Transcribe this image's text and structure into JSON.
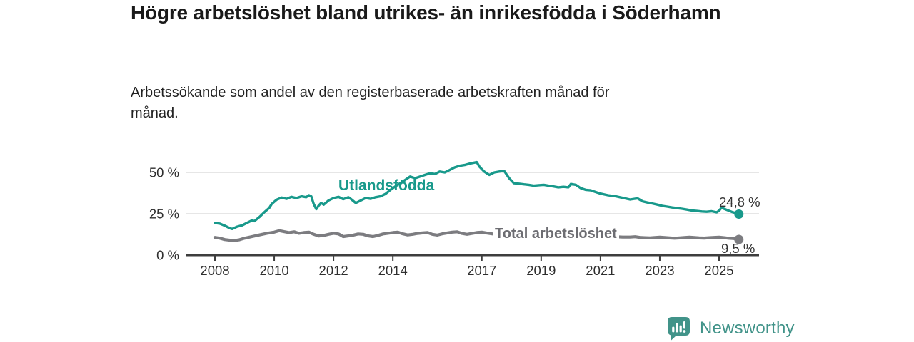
{
  "header": {
    "title": "Högre arbetslöshet bland utrikes- än inrikesfödda i Söderhamn",
    "subtitle": "Arbetssökande som andel av den registerbaserade arbetskraften månad för månad."
  },
  "colors": {
    "accent_teal": "#18998b",
    "line_gray": "#7c7c80",
    "label_gray": "#6d6d72",
    "axis": "#3d3d3d",
    "gridline": "#d8d8d8",
    "tick_text": "#2e2e2e",
    "title_text": "#1a1a1a",
    "value_label_text": "#333333",
    "logo_teal": "#419389"
  },
  "footer": {
    "brand": "Newsworthy",
    "logo_icon": "bar-chart-speech-bubble-icon"
  },
  "chart_data": {
    "type": "line",
    "title": "Högre arbetslöshet bland utrikes- än inrikesfödda i Söderhamn",
    "subtitle": "Arbetssökande som andel av den registerbaserade arbetskraften månad för månad.",
    "xlabel": "",
    "ylabel": "",
    "grid": "horizontal-only",
    "legend_position": "inline-labels-on-lines",
    "xlim": [
      2007.05,
      2026.35
    ],
    "ylim": [
      0,
      61
    ],
    "x_ticks": [
      {
        "value": 2008,
        "label": "2008"
      },
      {
        "value": 2010,
        "label": "2010"
      },
      {
        "value": 2012,
        "label": "2012"
      },
      {
        "value": 2014,
        "label": "2014"
      },
      {
        "value": 2017,
        "label": "2017"
      },
      {
        "value": 2019,
        "label": "2019"
      },
      {
        "value": 2021,
        "label": "2021"
      },
      {
        "value": 2023,
        "label": "2023"
      },
      {
        "value": 2025,
        "label": "2025"
      }
    ],
    "y_ticks": [
      {
        "value": 0,
        "label": "0 %"
      },
      {
        "value": 25,
        "label": "25 %"
      },
      {
        "value": 50,
        "label": "50 %"
      }
    ],
    "series": [
      {
        "name": "Utlandsfödda",
        "color": "#18998b",
        "end_label": "24,8 %",
        "end_value": 24.8,
        "points": [
          [
            2008.0,
            19.5
          ],
          [
            2008.17,
            19.0
          ],
          [
            2008.33,
            17.8
          ],
          [
            2008.5,
            16.3
          ],
          [
            2008.58,
            15.8
          ],
          [
            2008.75,
            17.2
          ],
          [
            2008.92,
            18.0
          ],
          [
            2009.08,
            19.5
          ],
          [
            2009.25,
            21.0
          ],
          [
            2009.33,
            20.5
          ],
          [
            2009.5,
            23.0
          ],
          [
            2009.67,
            26.0
          ],
          [
            2009.83,
            28.5
          ],
          [
            2009.92,
            31.0
          ],
          [
            2010.08,
            33.5
          ],
          [
            2010.25,
            34.8
          ],
          [
            2010.42,
            34.0
          ],
          [
            2010.58,
            35.2
          ],
          [
            2010.75,
            34.5
          ],
          [
            2010.92,
            35.5
          ],
          [
            2011.08,
            35.0
          ],
          [
            2011.17,
            36.2
          ],
          [
            2011.25,
            35.5
          ],
          [
            2011.33,
            31.0
          ],
          [
            2011.42,
            27.8
          ],
          [
            2011.5,
            30.0
          ],
          [
            2011.58,
            31.5
          ],
          [
            2011.67,
            30.5
          ],
          [
            2011.83,
            33.0
          ],
          [
            2012.0,
            34.5
          ],
          [
            2012.17,
            35.2
          ],
          [
            2012.33,
            33.8
          ],
          [
            2012.5,
            35.0
          ],
          [
            2012.58,
            34.0
          ],
          [
            2012.75,
            31.5
          ],
          [
            2012.92,
            33.0
          ],
          [
            2013.08,
            34.5
          ],
          [
            2013.25,
            34.0
          ],
          [
            2013.42,
            35.0
          ],
          [
            2013.58,
            35.5
          ],
          [
            2013.75,
            37.0
          ],
          [
            2013.92,
            39.5
          ],
          [
            2014.08,
            41.5
          ],
          [
            2014.25,
            43.5
          ],
          [
            2014.42,
            45.5
          ],
          [
            2014.58,
            47.5
          ],
          [
            2014.75,
            46.5
          ],
          [
            2014.92,
            47.5
          ],
          [
            2015.08,
            48.5
          ],
          [
            2015.25,
            49.5
          ],
          [
            2015.42,
            49.0
          ],
          [
            2015.58,
            50.5
          ],
          [
            2015.75,
            50.0
          ],
          [
            2015.92,
            51.5
          ],
          [
            2016.08,
            53.0
          ],
          [
            2016.25,
            54.0
          ],
          [
            2016.42,
            54.5
          ],
          [
            2016.58,
            55.3
          ],
          [
            2016.83,
            56.2
          ],
          [
            2016.92,
            53.5
          ],
          [
            2017.08,
            50.5
          ],
          [
            2017.25,
            48.5
          ],
          [
            2017.42,
            50.0
          ],
          [
            2017.58,
            50.5
          ],
          [
            2017.75,
            51.0
          ],
          [
            2017.92,
            46.5
          ],
          [
            2018.08,
            43.5
          ],
          [
            2018.25,
            43.2
          ],
          [
            2018.42,
            42.8
          ],
          [
            2018.58,
            42.5
          ],
          [
            2018.75,
            42.0
          ],
          [
            2018.92,
            42.3
          ],
          [
            2019.08,
            42.5
          ],
          [
            2019.25,
            42.0
          ],
          [
            2019.42,
            41.5
          ],
          [
            2019.58,
            41.0
          ],
          [
            2019.75,
            41.3
          ],
          [
            2019.92,
            41.0
          ],
          [
            2020.0,
            43.0
          ],
          [
            2020.17,
            42.5
          ],
          [
            2020.33,
            40.5
          ],
          [
            2020.5,
            39.5
          ],
          [
            2020.67,
            39.2
          ],
          [
            2020.83,
            38.2
          ],
          [
            2021.0,
            37.2
          ],
          [
            2021.25,
            36.2
          ],
          [
            2021.5,
            35.6
          ],
          [
            2021.75,
            34.6
          ],
          [
            2022.0,
            33.6
          ],
          [
            2022.25,
            34.3
          ],
          [
            2022.42,
            32.5
          ],
          [
            2022.58,
            31.8
          ],
          [
            2022.75,
            31.2
          ],
          [
            2022.92,
            30.5
          ],
          [
            2023.08,
            29.8
          ],
          [
            2023.25,
            29.3
          ],
          [
            2023.42,
            28.8
          ],
          [
            2023.58,
            28.4
          ],
          [
            2023.75,
            28.0
          ],
          [
            2023.92,
            27.5
          ],
          [
            2024.08,
            27.0
          ],
          [
            2024.25,
            26.7
          ],
          [
            2024.42,
            26.4
          ],
          [
            2024.58,
            26.2
          ],
          [
            2024.75,
            26.5
          ],
          [
            2024.92,
            25.9
          ],
          [
            2025.0,
            26.8
          ],
          [
            2025.08,
            28.6
          ],
          [
            2025.25,
            27.4
          ],
          [
            2025.42,
            26.2
          ],
          [
            2025.58,
            25.3
          ],
          [
            2025.67,
            24.8
          ]
        ]
      },
      {
        "name": "Total arbetslöshet",
        "color": "#7c7c80",
        "end_label": "9,5 %",
        "end_value": 9.5,
        "points": [
          [
            2008.0,
            10.7
          ],
          [
            2008.17,
            10.2
          ],
          [
            2008.33,
            9.4
          ],
          [
            2008.5,
            9.0
          ],
          [
            2008.67,
            8.8
          ],
          [
            2008.83,
            9.3
          ],
          [
            2009.0,
            10.2
          ],
          [
            2009.25,
            11.2
          ],
          [
            2009.5,
            12.2
          ],
          [
            2009.75,
            13.2
          ],
          [
            2010.0,
            13.9
          ],
          [
            2010.17,
            14.8
          ],
          [
            2010.33,
            14.2
          ],
          [
            2010.5,
            13.6
          ],
          [
            2010.67,
            14.1
          ],
          [
            2010.83,
            13.2
          ],
          [
            2011.0,
            13.6
          ],
          [
            2011.17,
            13.9
          ],
          [
            2011.33,
            12.6
          ],
          [
            2011.5,
            11.6
          ],
          [
            2011.67,
            11.9
          ],
          [
            2011.83,
            12.6
          ],
          [
            2012.0,
            13.2
          ],
          [
            2012.17,
            12.8
          ],
          [
            2012.33,
            11.2
          ],
          [
            2012.5,
            11.6
          ],
          [
            2012.67,
            12.1
          ],
          [
            2012.83,
            12.8
          ],
          [
            2013.0,
            12.6
          ],
          [
            2013.17,
            11.6
          ],
          [
            2013.33,
            11.2
          ],
          [
            2013.5,
            11.9
          ],
          [
            2013.67,
            12.8
          ],
          [
            2013.83,
            13.2
          ],
          [
            2014.0,
            13.6
          ],
          [
            2014.17,
            13.9
          ],
          [
            2014.33,
            12.9
          ],
          [
            2014.5,
            12.2
          ],
          [
            2014.67,
            12.6
          ],
          [
            2014.83,
            13.1
          ],
          [
            2015.0,
            13.4
          ],
          [
            2015.17,
            13.6
          ],
          [
            2015.33,
            12.6
          ],
          [
            2015.5,
            12.1
          ],
          [
            2015.67,
            12.9
          ],
          [
            2015.83,
            13.4
          ],
          [
            2016.0,
            13.9
          ],
          [
            2016.17,
            14.1
          ],
          [
            2016.33,
            13.1
          ],
          [
            2016.5,
            12.6
          ],
          [
            2016.67,
            13.1
          ],
          [
            2016.83,
            13.6
          ],
          [
            2017.0,
            13.9
          ],
          [
            2017.17,
            13.3
          ],
          [
            2017.33,
            12.9
          ],
          [
            2017.5,
            12.4
          ],
          [
            2017.75,
            12.1
          ],
          [
            2018.0,
            12.4
          ],
          [
            2018.25,
            11.9
          ],
          [
            2018.5,
            11.4
          ],
          [
            2018.75,
            11.6
          ],
          [
            2019.0,
            11.9
          ],
          [
            2019.25,
            11.4
          ],
          [
            2019.5,
            11.1
          ],
          [
            2019.75,
            11.4
          ],
          [
            2020.0,
            11.9
          ],
          [
            2020.25,
            12.4
          ],
          [
            2020.5,
            12.1
          ],
          [
            2020.75,
            11.9
          ],
          [
            2021.0,
            11.6
          ],
          [
            2021.25,
            11.3
          ],
          [
            2021.5,
            11.1
          ],
          [
            2021.75,
            10.9
          ],
          [
            2022.0,
            10.9
          ],
          [
            2022.17,
            11.1
          ],
          [
            2022.33,
            10.7
          ],
          [
            2022.5,
            10.5
          ],
          [
            2022.67,
            10.4
          ],
          [
            2022.83,
            10.6
          ],
          [
            2023.0,
            10.8
          ],
          [
            2023.17,
            10.6
          ],
          [
            2023.33,
            10.4
          ],
          [
            2023.5,
            10.2
          ],
          [
            2023.67,
            10.4
          ],
          [
            2023.83,
            10.6
          ],
          [
            2024.0,
            10.8
          ],
          [
            2024.17,
            10.6
          ],
          [
            2024.33,
            10.4
          ],
          [
            2024.5,
            10.3
          ],
          [
            2024.67,
            10.5
          ],
          [
            2024.83,
            10.7
          ],
          [
            2025.0,
            10.8
          ],
          [
            2025.17,
            10.5
          ],
          [
            2025.33,
            10.2
          ],
          [
            2025.5,
            10.0
          ],
          [
            2025.67,
            9.5
          ]
        ]
      }
    ]
  }
}
